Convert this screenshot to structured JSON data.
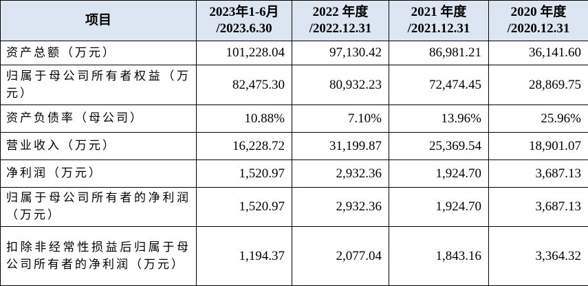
{
  "table": {
    "header": [
      [
        "项目"
      ],
      [
        "2023年1-6月",
        "/2023.6.30"
      ],
      [
        "2022 年度",
        "/2022.12.31"
      ],
      [
        "2021 年度",
        "/2021.12.31"
      ],
      [
        "2020 年度",
        "/2020.12.31"
      ]
    ],
    "rows": [
      [
        "资产总额（万元）",
        "101,228.04",
        "97,130.42",
        "86,981.21",
        "36,141.60"
      ],
      [
        "归属于母公司所有者权益（万元）",
        "82,475.30",
        "80,932.23",
        "72,474.45",
        "28,869.75"
      ],
      [
        "资产负债率（母公司）",
        "10.88%",
        "7.10%",
        "13.96%",
        "25.96%"
      ],
      [
        "营业收入（万元）",
        "16,228.72",
        "31,199.87",
        "25,369.54",
        "18,901.07"
      ],
      [
        "净利润（万元）",
        "1,520.97",
        "2,932.36",
        "1,924.70",
        "3,687.13"
      ],
      [
        "归属于母公司所有者的净利润（万元）",
        "1,520.97",
        "2,932.36",
        "1,924.70",
        "3,687.13"
      ],
      [
        "扣除非经常性损益后归属于母公司所有者的净利润（万元）",
        "1,194.37",
        "2,077.04",
        "1,843.16",
        "3,364.32"
      ]
    ]
  }
}
